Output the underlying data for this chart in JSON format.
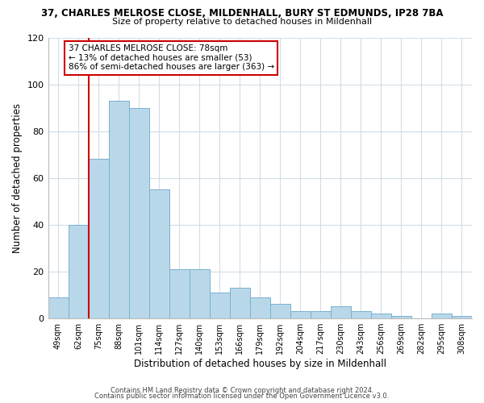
{
  "title_line1": "37, CHARLES MELROSE CLOSE, MILDENHALL, BURY ST EDMUNDS, IP28 7BA",
  "title_line2": "Size of property relative to detached houses in Mildenhall",
  "xlabel": "Distribution of detached houses by size in Mildenhall",
  "ylabel": "Number of detached properties",
  "bin_labels": [
    "49sqm",
    "62sqm",
    "75sqm",
    "88sqm",
    "101sqm",
    "114sqm",
    "127sqm",
    "140sqm",
    "153sqm",
    "166sqm",
    "179sqm",
    "192sqm",
    "204sqm",
    "217sqm",
    "230sqm",
    "243sqm",
    "256sqm",
    "269sqm",
    "282sqm",
    "295sqm",
    "308sqm"
  ],
  "bar_values": [
    9,
    40,
    68,
    93,
    90,
    55,
    21,
    21,
    11,
    13,
    9,
    6,
    3,
    3,
    5,
    3,
    2,
    1,
    0,
    2,
    1
  ],
  "bar_color": "#b8d8ea",
  "bar_edge_color": "#7ab0cc",
  "vline_x_label": "75sqm",
  "vline_color": "#cc0000",
  "annotation_title": "37 CHARLES MELROSE CLOSE: 78sqm",
  "annotation_line1": "← 13% of detached houses are smaller (53)",
  "annotation_line2": "86% of semi-detached houses are larger (363) →",
  "annotation_box_color": "#ffffff",
  "annotation_box_edge": "#cc0000",
  "ylim": [
    0,
    120
  ],
  "yticks": [
    0,
    20,
    40,
    60,
    80,
    100,
    120
  ],
  "footer1": "Contains HM Land Registry data © Crown copyright and database right 2024.",
  "footer2": "Contains public sector information licensed under the Open Government Licence v3.0.",
  "background_color": "#ffffff",
  "grid_color": "#d0dde8"
}
